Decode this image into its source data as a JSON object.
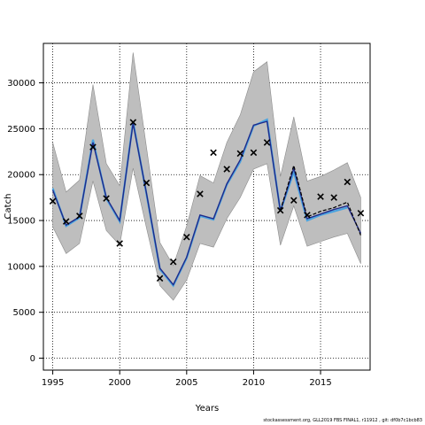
{
  "footer_text": "stockassessment.org, GLL2019 FBS FINAL1, r11912 , git: df0b7c1bcb83",
  "colors": {
    "band": "#bebebe",
    "band_edge": "#8c8c8c",
    "estimate": "#1f2a8a",
    "estimate_alt": "#4aa3e0",
    "retro": "#000000",
    "grid": "#000000",
    "observed": "#000000"
  },
  "chart_data": {
    "type": "line",
    "title": "",
    "xlabel": "Years",
    "ylabel": "Catch",
    "xlim": [
      1994.3,
      2018.7
    ],
    "ylim": [
      -1300,
      34300
    ],
    "xticks": [
      1995,
      2000,
      2005,
      2010,
      2015
    ],
    "yticks": [
      0,
      5000,
      10000,
      15000,
      20000,
      25000,
      30000
    ],
    "grid": "dotted",
    "x": [
      1995,
      1996,
      1997,
      1998,
      1999,
      2000,
      2001,
      2002,
      2003,
      2004,
      2005,
      2006,
      2007,
      2008,
      2009,
      2010,
      2011,
      2012,
      2013,
      2014,
      2015,
      2016,
      2017,
      2018
    ],
    "series": [
      {
        "role": "estimate",
        "values": [
          18300,
          14500,
          15400,
          23500,
          17500,
          15000,
          25600,
          18000,
          9800,
          8000,
          11000,
          15600,
          15200,
          19000,
          21600,
          25400,
          25800,
          16000,
          20700,
          15200,
          15700,
          16200,
          16600,
          13600
        ]
      },
      {
        "role": "estimate-alt",
        "values": [
          18500,
          14400,
          15300,
          23800,
          17400,
          14900,
          25800,
          17900,
          9700,
          7900,
          10900,
          15500,
          15100,
          18900,
          21400,
          25300,
          26000,
          16000,
          20300,
          15000,
          15600,
          16000,
          16400,
          null
        ]
      },
      {
        "role": "retrospective",
        "values": [
          null,
          null,
          null,
          null,
          null,
          null,
          null,
          null,
          null,
          null,
          null,
          null,
          null,
          null,
          null,
          null,
          null,
          16100,
          21000,
          15400,
          16000,
          16400,
          17000,
          13400
        ]
      },
      {
        "role": "ci-lower",
        "values": [
          14300,
          11400,
          12500,
          19300,
          13900,
          12300,
          20700,
          14200,
          7900,
          6300,
          8500,
          12500,
          12100,
          15200,
          17500,
          20600,
          21200,
          12300,
          16600,
          12200,
          12700,
          13200,
          13600,
          10300
        ]
      },
      {
        "role": "ci-upper",
        "values": [
          23500,
          18100,
          19400,
          29800,
          21200,
          18800,
          33300,
          23000,
          12600,
          10100,
          14400,
          19900,
          19100,
          23500,
          26500,
          31200,
          32300,
          19800,
          26300,
          19300,
          19800,
          20500,
          21300,
          17500
        ]
      },
      {
        "role": "observed",
        "values": [
          17100,
          14900,
          15500,
          23000,
          17400,
          12500,
          25700,
          19100,
          8700,
          10500,
          13200,
          17900,
          22400,
          20600,
          22300,
          22400,
          23500,
          16100,
          17200,
          15600,
          17600,
          17500,
          19200,
          15800
        ]
      }
    ]
  }
}
